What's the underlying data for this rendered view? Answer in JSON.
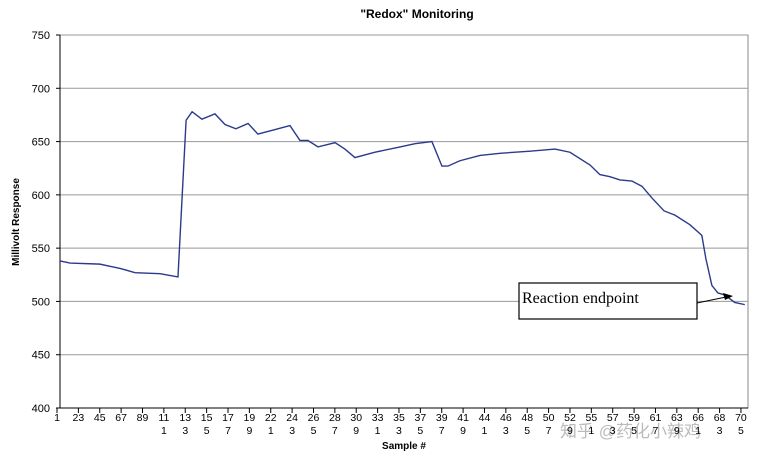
{
  "chart_data": {
    "type": "line",
    "title": "\"Redox\" Monitoring",
    "x_label": "Sample #",
    "y_label": "Millivolt Response",
    "xlim": [
      0.14,
      32.33
    ],
    "ylim": [
      400,
      750
    ],
    "yticks": [
      400,
      450,
      500,
      550,
      600,
      650,
      700,
      750
    ],
    "xticks": [
      {
        "value": 0,
        "label": [
          "1"
        ]
      },
      {
        "value": 1,
        "label": [
          "23"
        ]
      },
      {
        "value": 2,
        "label": [
          "45"
        ]
      },
      {
        "value": 3,
        "label": [
          "67"
        ]
      },
      {
        "value": 4,
        "label": [
          "89"
        ]
      },
      {
        "value": 5,
        "label": [
          "11",
          "1"
        ]
      },
      {
        "value": 6,
        "label": [
          "13",
          "3"
        ]
      },
      {
        "value": 7,
        "label": [
          "15",
          "5"
        ]
      },
      {
        "value": 8,
        "label": [
          "17",
          "7"
        ]
      },
      {
        "value": 9,
        "label": [
          "19",
          "9"
        ]
      },
      {
        "value": 10,
        "label": [
          "22",
          "1"
        ]
      },
      {
        "value": 11,
        "label": [
          "24",
          "3"
        ]
      },
      {
        "value": 12,
        "label": [
          "26",
          "5"
        ]
      },
      {
        "value": 13,
        "label": [
          "28",
          "7"
        ]
      },
      {
        "value": 14,
        "label": [
          "30",
          "9"
        ]
      },
      {
        "value": 15,
        "label": [
          "33",
          "1"
        ]
      },
      {
        "value": 16,
        "label": [
          "35",
          "3"
        ]
      },
      {
        "value": 17,
        "label": [
          "37",
          "5"
        ]
      },
      {
        "value": 18,
        "label": [
          "39",
          "7"
        ]
      },
      {
        "value": 19,
        "label": [
          "41",
          "9"
        ]
      },
      {
        "value": 20,
        "label": [
          "44",
          "1"
        ]
      },
      {
        "value": 21,
        "label": [
          "46",
          "3"
        ]
      },
      {
        "value": 22,
        "label": [
          "48",
          "5"
        ]
      },
      {
        "value": 23,
        "label": [
          "50",
          "7"
        ]
      },
      {
        "value": 24,
        "label": [
          "52",
          "9"
        ]
      },
      {
        "value": 25,
        "label": [
          "55",
          "1"
        ]
      },
      {
        "value": 26,
        "label": [
          "57",
          "3"
        ]
      },
      {
        "value": 27,
        "label": [
          "59",
          "5"
        ]
      },
      {
        "value": 28,
        "label": [
          "61",
          "7"
        ]
      },
      {
        "value": 29,
        "label": [
          "63",
          "9"
        ]
      },
      {
        "value": 30,
        "label": [
          "66",
          "1"
        ]
      },
      {
        "value": 31,
        "label": [
          "68",
          "3"
        ]
      },
      {
        "value": 32,
        "label": [
          "70",
          "5"
        ]
      }
    ],
    "grid": true,
    "series": [
      {
        "color": "#2b3a8c",
        "x": [
          0.14,
          0.61,
          2.01,
          2.48,
          2.95,
          3.65,
          4.82,
          5.66,
          6.04,
          6.32,
          6.78,
          7.39,
          7.86,
          8.37,
          8.94,
          9.4,
          9.96,
          10.9,
          11.37,
          11.74,
          12.21,
          13.01,
          13.47,
          13.94,
          14.88,
          16.05,
          16.75,
          17.54,
          18.01,
          18.29,
          18.85,
          19.79,
          20.73,
          22.13,
          23.3,
          24.0,
          24.94,
          25.4,
          25.87,
          26.34,
          26.9,
          27.37,
          27.84,
          28.4,
          28.91,
          29.61,
          30.17,
          30.36,
          30.64,
          30.92,
          31.25,
          31.71,
          32.18
        ],
        "values": [
          538,
          536,
          535,
          533,
          531,
          527,
          526,
          523,
          670,
          678,
          671,
          676,
          666,
          662,
          667,
          657,
          660,
          665,
          651,
          651,
          645,
          649,
          643,
          635,
          640,
          645,
          648,
          650,
          627,
          627,
          632,
          637,
          639,
          641,
          643,
          640,
          628,
          619,
          617,
          614,
          613,
          608,
          597,
          585,
          581,
          572,
          562,
          540,
          515,
          508,
          506,
          499,
          497
        ]
      }
    ],
    "annotation": {
      "text": "Reaction endpoint"
    },
    "watermark": "知乎 @药化小辣鸡"
  }
}
